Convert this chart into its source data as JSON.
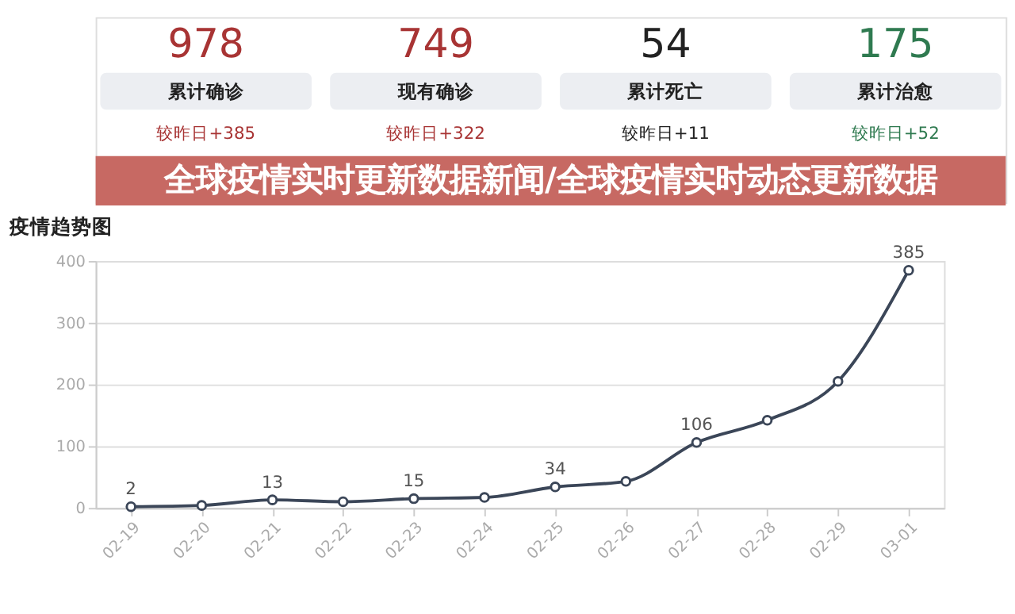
{
  "chart_data": [
    {
      "type": "other",
      "categories": [
        "累计确诊",
        "现有确诊",
        "累计死亡",
        "累计治愈"
      ],
      "values": [
        978,
        749,
        54,
        175
      ],
      "colors": [
        "#eceef2",
        "#eceef2",
        "#eceef2",
        "#eceef2"
      ],
      "data_labels": true,
      "annotations": [
        "较昨日+385",
        "较昨日+322",
        "较昨日+11",
        "较昨日+52",
        "全球疫情实时更新数据新闻/全球疫情实时动态更新数据"
      ]
    },
    {
      "type": "line",
      "title": "疫情趋势图",
      "categories": [
        "02-19",
        "02-20",
        "02-21",
        "02-22",
        "02-23",
        "02-24",
        "02-25",
        "02-26",
        "02-27",
        "02-28",
        "02-29",
        "03-01"
      ],
      "series": [
        {
          "color": "#3b4658",
          "values": [
            2,
            4,
            13,
            10,
            15,
            17,
            34,
            43,
            106,
            142,
            205,
            385
          ],
          "value_labels": [
            "2",
            null,
            "13",
            null,
            "15",
            null,
            "34",
            null,
            "106",
            null,
            null,
            "385"
          ]
        }
      ],
      "ylim": [
        0,
        400
      ],
      "yticks": [
        0,
        100,
        200,
        300,
        400
      ],
      "grid": "y",
      "marker": "circle",
      "line_style": "solid"
    }
  ]
}
